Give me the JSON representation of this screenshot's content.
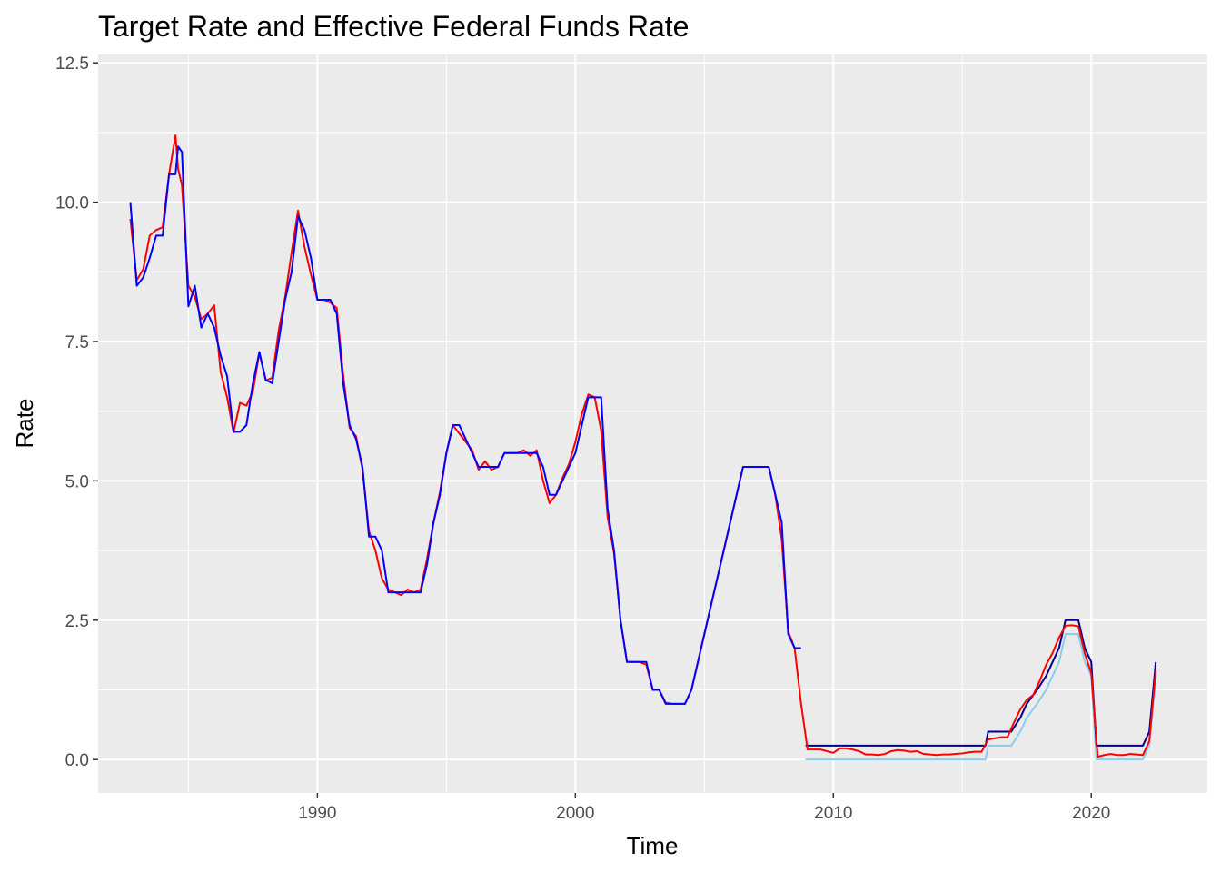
{
  "chart_data": {
    "type": "line",
    "title": "Target Rate and Effective Federal Funds Rate",
    "xlabel": "Time",
    "ylabel": "Rate",
    "xlim": [
      1981.5,
      2024.5
    ],
    "ylim": [
      -0.6,
      12.65
    ],
    "x_ticks": [
      1990,
      2000,
      2010,
      2020
    ],
    "x_tick_labels": [
      "1990",
      "2000",
      "2010",
      "2020"
    ],
    "y_ticks": [
      0,
      2.5,
      5,
      7.5,
      10,
      12.5
    ],
    "y_tick_labels": [
      "0.0",
      "2.5",
      "5.0",
      "7.5",
      "10.0",
      "12.5"
    ],
    "grid": true,
    "legend": "none",
    "colors": {
      "panel": "#ebebeb",
      "grid": "#ffffff",
      "effective": "#ff0000",
      "target": "#0000ff",
      "upper": "#00008b",
      "lower": "#87ceeb"
    },
    "series": [
      {
        "key": "effective",
        "x": [
          1982.75,
          1983.0,
          1983.25,
          1983.5,
          1983.75,
          1984.0,
          1984.25,
          1984.5,
          1984.6,
          1984.75,
          1985.0,
          1985.25,
          1985.5,
          1985.75,
          1986.0,
          1986.25,
          1986.5,
          1986.75,
          1987.0,
          1987.25,
          1987.5,
          1987.75,
          1988.0,
          1988.25,
          1988.5,
          1988.75,
          1989.0,
          1989.25,
          1989.5,
          1989.75,
          1990.0,
          1990.25,
          1990.5,
          1990.75,
          1991.0,
          1991.25,
          1991.5,
          1991.75,
          1992.0,
          1992.25,
          1992.5,
          1992.75,
          1993.0,
          1993.25,
          1993.5,
          1993.75,
          1994.0,
          1994.25,
          1994.5,
          1994.75,
          1995.0,
          1995.25,
          1995.5,
          1995.75,
          1996.0,
          1996.25,
          1996.5,
          1996.75,
          1997.0,
          1997.25,
          1997.5,
          1997.75,
          1998.0,
          1998.25,
          1998.5,
          1998.75,
          1999.0,
          1999.25,
          1999.5,
          1999.75,
          2000.0,
          2000.25,
          2000.5,
          2000.75,
          2001.0,
          2001.25,
          2001.5,
          2001.75,
          2002.0,
          2002.25,
          2002.5,
          2002.75,
          2003.0,
          2003.25,
          2003.5,
          2003.75,
          2004.0,
          2004.25,
          2004.5,
          2004.75,
          2005.0,
          2005.25,
          2005.5,
          2005.75,
          2006.0,
          2006.25,
          2006.5,
          2006.75,
          2007.0,
          2007.25,
          2007.5,
          2007.75,
          2008.0,
          2008.25,
          2008.5,
          2008.75,
          2009.0,
          2009.25,
          2009.5,
          2009.75,
          2010.0,
          2010.25,
          2010.5,
          2010.75,
          2011.0,
          2011.25,
          2011.5,
          2011.75,
          2012.0,
          2012.25,
          2012.5,
          2012.75,
          2013.0,
          2013.25,
          2013.5,
          2013.75,
          2014.0,
          2014.25,
          2014.5,
          2014.75,
          2015.0,
          2015.25,
          2015.5,
          2015.75,
          2016.0,
          2016.25,
          2016.5,
          2016.75,
          2017.0,
          2017.25,
          2017.5,
          2017.75,
          2018.0,
          2018.25,
          2018.5,
          2018.75,
          2019.0,
          2019.25,
          2019.5,
          2019.75,
          2020.0,
          2020.25,
          2020.5,
          2020.75,
          2021.0,
          2021.25,
          2021.5,
          2021.75,
          2022.0,
          2022.25,
          2022.5
        ],
        "y": [
          9.7,
          8.6,
          8.8,
          9.4,
          9.5,
          9.55,
          10.5,
          11.2,
          10.6,
          10.3,
          8.5,
          8.3,
          7.9,
          8.0,
          8.15,
          6.95,
          6.5,
          5.87,
          6.4,
          6.35,
          6.6,
          7.3,
          6.8,
          6.85,
          7.7,
          8.3,
          9.1,
          9.85,
          9.2,
          8.7,
          8.25,
          8.25,
          8.2,
          8.1,
          6.9,
          5.95,
          5.8,
          5.2,
          4.1,
          3.75,
          3.25,
          3.05,
          3.0,
          2.95,
          3.05,
          3.0,
          3.05,
          3.6,
          4.25,
          4.8,
          5.5,
          6.0,
          5.85,
          5.7,
          5.55,
          5.2,
          5.35,
          5.2,
          5.25,
          5.5,
          5.5,
          5.5,
          5.55,
          5.45,
          5.55,
          5.0,
          4.6,
          4.75,
          5.05,
          5.3,
          5.7,
          6.2,
          6.55,
          6.5,
          5.9,
          4.35,
          3.7,
          2.5,
          1.75,
          1.75,
          1.75,
          1.7,
          1.25,
          1.25,
          1.02,
          1.0,
          1.0,
          1.0,
          1.25,
          1.75,
          2.25,
          2.75,
          3.25,
          3.75,
          4.25,
          4.75,
          5.25,
          5.25,
          5.25,
          5.25,
          5.25,
          4.75,
          3.95,
          2.3,
          2.0,
          1.0,
          0.18,
          0.18,
          0.18,
          0.15,
          0.12,
          0.2,
          0.2,
          0.18,
          0.15,
          0.09,
          0.09,
          0.08,
          0.1,
          0.15,
          0.17,
          0.16,
          0.14,
          0.15,
          0.1,
          0.09,
          0.08,
          0.09,
          0.09,
          0.1,
          0.11,
          0.13,
          0.14,
          0.14,
          0.36,
          0.38,
          0.4,
          0.4,
          0.66,
          0.9,
          1.07,
          1.16,
          1.41,
          1.7,
          1.91,
          2.19,
          2.4,
          2.41,
          2.39,
          1.9,
          1.55,
          0.05,
          0.08,
          0.1,
          0.08,
          0.08,
          0.1,
          0.09,
          0.08,
          0.33,
          1.6
        ]
      },
      {
        "key": "target",
        "x": [
          1982.75,
          1983.0,
          1983.25,
          1983.5,
          1983.75,
          1984.0,
          1984.25,
          1984.5,
          1984.6,
          1984.75,
          1985.0,
          1985.25,
          1985.5,
          1985.75,
          1986.0,
          1986.25,
          1986.5,
          1986.75,
          1987.0,
          1987.25,
          1987.5,
          1987.75,
          1988.0,
          1988.25,
          1988.5,
          1988.75,
          1989.0,
          1989.25,
          1989.5,
          1989.75,
          1990.0,
          1990.25,
          1990.5,
          1990.75,
          1991.0,
          1991.25,
          1991.5,
          1991.75,
          1992.0,
          1992.25,
          1992.5,
          1992.75,
          1993.0,
          1993.25,
          1993.5,
          1993.75,
          1994.0,
          1994.25,
          1994.5,
          1994.75,
          1995.0,
          1995.25,
          1995.5,
          1995.75,
          1996.0,
          1996.25,
          1996.5,
          1996.75,
          1997.0,
          1997.25,
          1997.5,
          1997.75,
          1998.0,
          1998.25,
          1998.5,
          1998.75,
          1999.0,
          1999.25,
          1999.5,
          1999.75,
          2000.0,
          2000.25,
          2000.5,
          2000.75,
          2001.0,
          2001.25,
          2001.5,
          2001.75,
          2002.0,
          2002.25,
          2002.5,
          2002.75,
          2003.0,
          2003.25,
          2003.5,
          2003.75,
          2004.0,
          2004.25,
          2004.5,
          2004.75,
          2005.0,
          2005.25,
          2005.5,
          2005.75,
          2006.0,
          2006.25,
          2006.5,
          2006.75,
          2007.0,
          2007.25,
          2007.5,
          2007.75,
          2008.0,
          2008.25,
          2008.5,
          2008.75
        ],
        "y": [
          10.0,
          8.5,
          8.65,
          9.0,
          9.4,
          9.4,
          10.5,
          10.5,
          11.0,
          10.9,
          8.13,
          8.5,
          7.75,
          8.0,
          7.75,
          7.25,
          6.88,
          5.88,
          5.88,
          6.0,
          6.75,
          7.31,
          6.81,
          6.75,
          7.5,
          8.25,
          8.75,
          9.75,
          9.5,
          9.0,
          8.25,
          8.25,
          8.25,
          8.0,
          6.75,
          6.0,
          5.75,
          5.25,
          4.0,
          4.0,
          3.75,
          3.0,
          3.0,
          3.0,
          3.0,
          3.0,
          3.0,
          3.5,
          4.25,
          4.75,
          5.5,
          6.0,
          6.0,
          5.75,
          5.5,
          5.25,
          5.25,
          5.25,
          5.25,
          5.5,
          5.5,
          5.5,
          5.5,
          5.5,
          5.5,
          5.25,
          4.75,
          4.75,
          5.0,
          5.25,
          5.5,
          6.0,
          6.5,
          6.5,
          6.5,
          4.5,
          3.75,
          2.5,
          1.75,
          1.75,
          1.75,
          1.75,
          1.25,
          1.25,
          1.0,
          1.0,
          1.0,
          1.0,
          1.25,
          1.75,
          2.25,
          2.75,
          3.25,
          3.75,
          4.25,
          4.75,
          5.25,
          5.25,
          5.25,
          5.25,
          5.25,
          4.75,
          4.25,
          2.25,
          2.0,
          2.0
        ]
      },
      {
        "key": "upper",
        "x": [
          2008.92,
          2015.9,
          2016.0,
          2016.9,
          2017.25,
          2017.5,
          2017.9,
          2018.25,
          2018.5,
          2018.75,
          2019.0,
          2019.5,
          2019.75,
          2020.0,
          2020.2,
          2022.0,
          2022.25,
          2022.5
        ],
        "y": [
          0.25,
          0.25,
          0.5,
          0.5,
          0.75,
          1.0,
          1.25,
          1.5,
          1.75,
          2.0,
          2.5,
          2.5,
          2.0,
          1.75,
          0.25,
          0.25,
          0.5,
          1.75
        ]
      },
      {
        "key": "lower",
        "x": [
          2008.92,
          2015.9,
          2016.0,
          2016.9,
          2017.25,
          2017.5,
          2017.9,
          2018.25,
          2018.5,
          2018.75,
          2019.0,
          2019.5,
          2019.75,
          2020.0,
          2020.2,
          2022.0,
          2022.25,
          2022.5
        ],
        "y": [
          0.0,
          0.0,
          0.25,
          0.25,
          0.5,
          0.75,
          1.0,
          1.25,
          1.5,
          1.75,
          2.25,
          2.25,
          1.75,
          1.5,
          0.0,
          0.0,
          0.25,
          1.5
        ]
      }
    ]
  }
}
